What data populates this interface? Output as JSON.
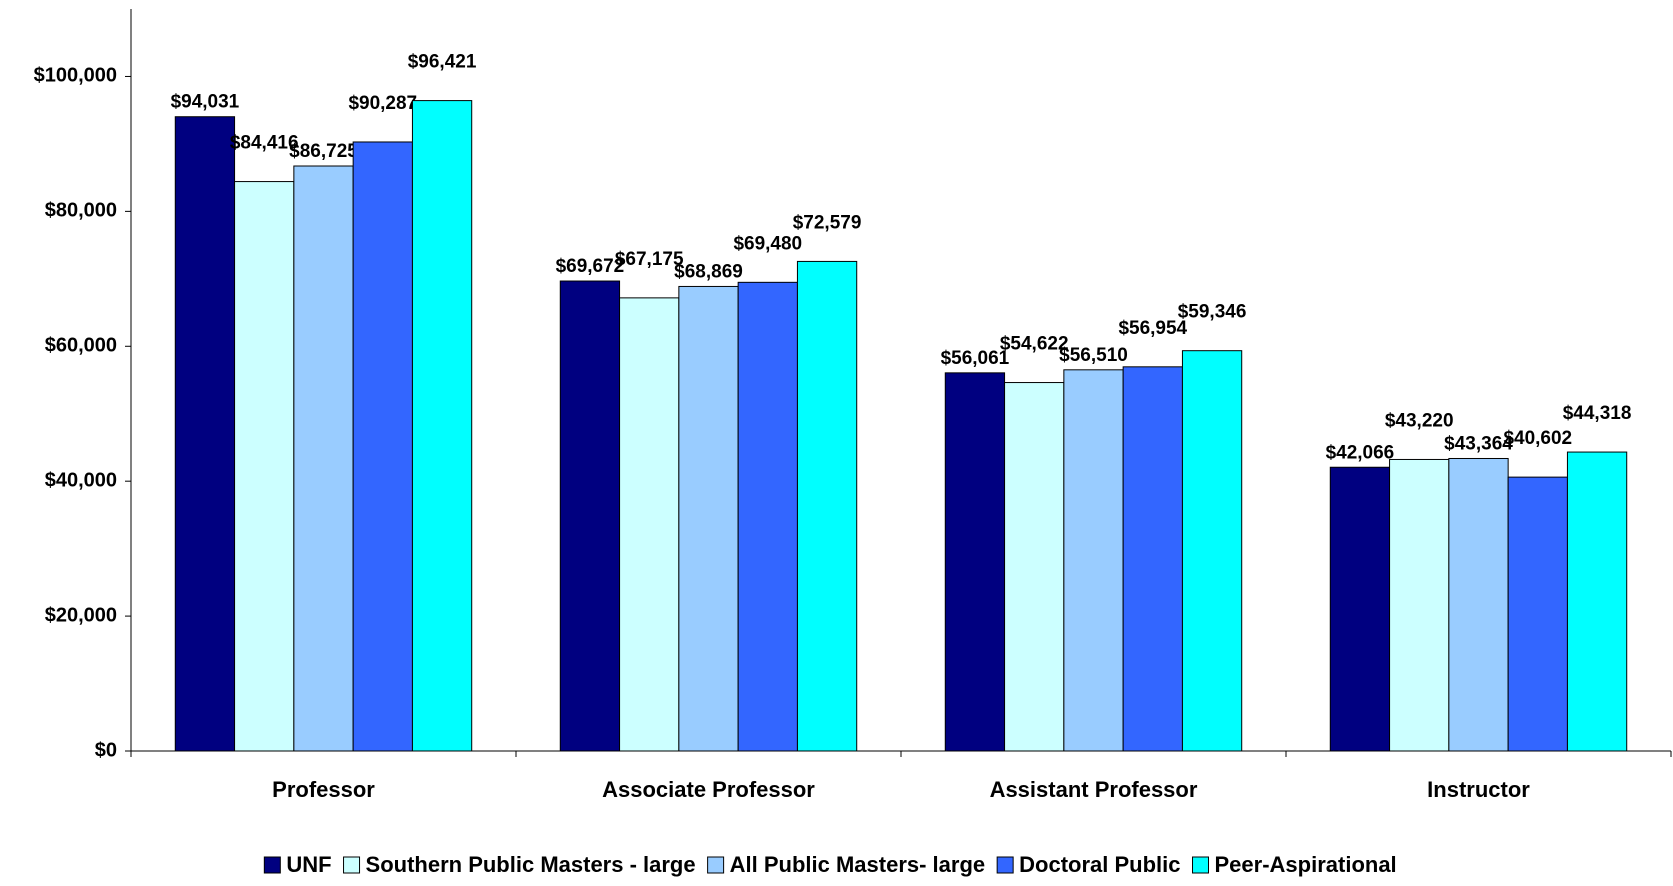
{
  "chart_data": {
    "type": "bar",
    "categories": [
      "Professor",
      "Associate Professor",
      "Assistant Professor",
      "Instructor"
    ],
    "series": [
      {
        "name": "UNF",
        "color": "#000080",
        "values": [
          94031,
          69672,
          56061,
          42066
        ],
        "value_labels": [
          "$94,031",
          "$69,672",
          "$56,061",
          "$42,066"
        ]
      },
      {
        "name": "Southern Public Masters - large",
        "color": "#ccffff",
        "values": [
          84416,
          67175,
          54622,
          43220
        ],
        "value_labels": [
          "$84,416",
          "$67,175",
          "$54,622",
          "$43,220"
        ]
      },
      {
        "name": "All Public Masters- large",
        "color": "#99ccff",
        "values": [
          86725,
          68869,
          56510,
          43364
        ],
        "value_labels": [
          "$86,725",
          "$68,869",
          "$56,510",
          "$43,364"
        ]
      },
      {
        "name": "Doctoral Public",
        "color": "#3366ff",
        "values": [
          90287,
          69480,
          56954,
          40602
        ],
        "value_labels": [
          "$90,287",
          "$69,480",
          "$56,954",
          "$40,602"
        ]
      },
      {
        "name": "Peer-Aspirational",
        "color": "#00ffff",
        "values": [
          96421,
          72579,
          59346,
          44318
        ],
        "value_labels": [
          "$96,421",
          "$72,579",
          "$59,346",
          "$44,318"
        ]
      }
    ],
    "ylim": [
      0,
      110000
    ],
    "yticks": [
      {
        "value": 0,
        "label": "$0"
      },
      {
        "value": 20000,
        "label": "$20,000"
      },
      {
        "value": 40000,
        "label": "$40,000"
      },
      {
        "value": 60000,
        "label": "$60,000"
      },
      {
        "value": 80000,
        "label": "$80,000"
      },
      {
        "value": 100000,
        "label": "$100,000"
      }
    ],
    "legend": "bottom"
  }
}
